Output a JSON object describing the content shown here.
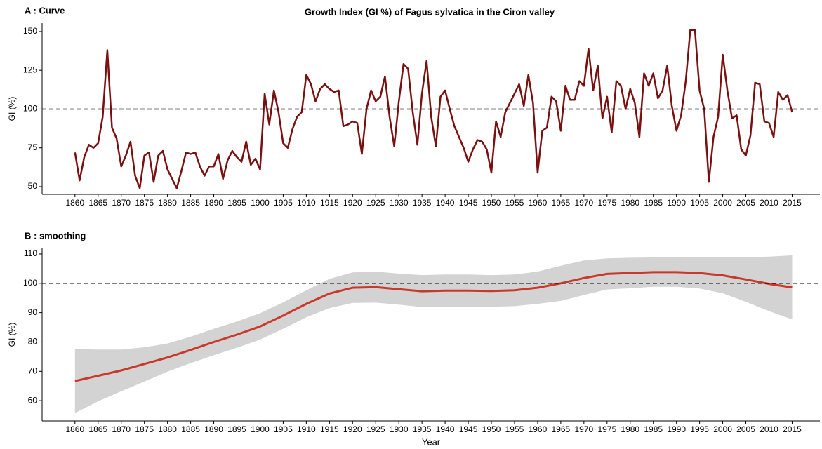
{
  "chart_data": [
    {
      "type": "line",
      "title": "Growth Index (GI %) of Fagus sylvatica in the Ciron valley",
      "panel_label": "A : Curve",
      "y_label": "GI (%)",
      "x": [
        1860,
        1861,
        1862,
        1863,
        1864,
        1865,
        1866,
        1867,
        1868,
        1869,
        1870,
        1871,
        1872,
        1873,
        1874,
        1875,
        1876,
        1877,
        1878,
        1879,
        1880,
        1881,
        1882,
        1883,
        1884,
        1885,
        1886,
        1887,
        1888,
        1889,
        1890,
        1891,
        1892,
        1893,
        1894,
        1895,
        1896,
        1897,
        1898,
        1899,
        1900,
        1901,
        1902,
        1903,
        1904,
        1905,
        1906,
        1907,
        1908,
        1909,
        1910,
        1911,
        1912,
        1913,
        1914,
        1915,
        1916,
        1917,
        1918,
        1919,
        1920,
        1921,
        1922,
        1923,
        1924,
        1925,
        1926,
        1927,
        1928,
        1929,
        1930,
        1931,
        1932,
        1933,
        1934,
        1935,
        1936,
        1937,
        1938,
        1939,
        1940,
        1941,
        1942,
        1943,
        1944,
        1945,
        1946,
        1947,
        1948,
        1949,
        1950,
        1951,
        1952,
        1953,
        1954,
        1955,
        1956,
        1957,
        1958,
        1959,
        1960,
        1961,
        1962,
        1963,
        1964,
        1965,
        1966,
        1967,
        1968,
        1969,
        1970,
        1971,
        1972,
        1973,
        1974,
        1975,
        1976,
        1977,
        1978,
        1979,
        1980,
        1981,
        1982,
        1983,
        1984,
        1985,
        1986,
        1987,
        1988,
        1989,
        1990,
        1991,
        1992,
        1993,
        1994,
        1995,
        1996,
        1997,
        1998,
        1999,
        2000,
        2001,
        2002,
        2003,
        2004,
        2005,
        2006,
        2007,
        2008,
        2009,
        2010,
        2011,
        2012,
        2013,
        2014,
        2015
      ],
      "values": [
        72,
        54,
        69,
        77,
        75,
        78,
        95,
        138,
        88,
        81,
        63,
        70,
        79,
        57,
        49,
        70,
        72,
        53,
        70,
        73,
        61,
        55,
        49,
        60,
        72,
        71,
        72,
        63,
        57,
        63,
        63,
        71,
        55,
        67,
        73,
        69,
        66,
        79,
        64,
        68,
        61,
        110,
        90,
        112,
        98,
        78,
        75,
        87,
        95,
        98,
        122,
        116,
        105,
        113,
        116,
        113,
        111,
        112,
        89,
        90,
        92,
        91,
        71,
        100,
        112,
        105,
        108,
        121,
        95,
        76,
        105,
        129,
        126,
        98,
        77,
        110,
        131,
        95,
        76,
        108,
        112,
        100,
        89,
        82,
        75,
        66,
        74,
        80,
        79,
        74,
        59,
        92,
        82,
        98,
        104,
        110,
        116,
        102,
        122,
        104,
        59,
        86,
        88,
        108,
        105,
        86,
        115,
        106,
        106,
        118,
        115,
        139,
        112,
        128,
        94,
        108,
        85,
        118,
        115,
        100,
        113,
        104,
        82,
        123,
        115,
        123,
        107,
        112,
        128,
        102,
        86,
        96,
        118,
        151,
        151,
        112,
        100,
        53,
        82,
        95,
        135,
        112,
        94,
        96,
        74,
        70,
        83,
        117,
        116,
        92,
        91,
        82,
        111,
        106,
        109,
        98
      ],
      "color": "#7a1010",
      "reference_line": 100,
      "xlim": [
        1852.9,
        2021
      ],
      "xticks": [
        1860,
        1865,
        1870,
        1875,
        1880,
        1885,
        1890,
        1895,
        1900,
        1905,
        1910,
        1915,
        1920,
        1925,
        1930,
        1935,
        1940,
        1945,
        1950,
        1955,
        1960,
        1965,
        1970,
        1975,
        1980,
        1985,
        1990,
        1995,
        2000,
        2005,
        2010,
        2015
      ],
      "ylim": [
        45,
        155.4
      ],
      "yticks": [
        50,
        75,
        100,
        125,
        150
      ]
    },
    {
      "type": "smooth",
      "panel_label": "B : smoothing",
      "y_label": "GI (%)",
      "x_label": "Year",
      "x": [
        1860,
        1865,
        1870,
        1875,
        1880,
        1885,
        1890,
        1895,
        1900,
        1905,
        1910,
        1915,
        1920,
        1925,
        1930,
        1935,
        1940,
        1945,
        1950,
        1955,
        1960,
        1965,
        1970,
        1975,
        1980,
        1985,
        1990,
        1995,
        2000,
        2005,
        2010,
        2015
      ],
      "values": [
        66.7,
        68.5,
        70.3,
        72.5,
        74.7,
        77.3,
        80,
        82.5,
        85.3,
        89,
        93,
        96.5,
        98.5,
        98.7,
        98,
        97.3,
        97.5,
        97.5,
        97.4,
        97.6,
        98.5,
        100,
        101.8,
        103.2,
        103.5,
        103.8,
        103.8,
        103.5,
        102.7,
        101.3,
        99.8,
        98.6
      ],
      "upper": [
        77.6,
        77.4,
        77.4,
        78.2,
        79.5,
        81.8,
        84.5,
        87,
        89.8,
        93.5,
        97.6,
        101.5,
        103.7,
        104,
        103.3,
        102.8,
        103,
        103,
        102.8,
        103,
        104,
        106,
        107.8,
        108.5,
        108.7,
        108.8,
        108.8,
        108.8,
        108.8,
        108.9,
        109.1,
        109.5
      ],
      "lower": [
        55.8,
        59.8,
        63.2,
        66.5,
        69.9,
        72.8,
        75.5,
        78,
        80.8,
        84.5,
        88.4,
        91.5,
        93.3,
        93.4,
        92.7,
        91.9,
        92,
        92,
        92,
        92.2,
        93,
        94,
        96,
        97.9,
        98.3,
        98.8,
        98.8,
        98.2,
        96.6,
        93.7,
        90.5,
        87.7
      ],
      "color": "#c8392b",
      "band_color": "#d3d3d3",
      "reference_line": 100,
      "xlim": [
        1852.9,
        2021
      ],
      "xticks": [
        1860,
        1865,
        1870,
        1875,
        1880,
        1885,
        1890,
        1895,
        1900,
        1905,
        1910,
        1915,
        1920,
        1925,
        1930,
        1935,
        1940,
        1945,
        1950,
        1955,
        1960,
        1965,
        1970,
        1975,
        1980,
        1985,
        1990,
        1995,
        2000,
        2005,
        2010,
        2015
      ],
      "ylim": [
        53.1,
        111.9
      ],
      "yticks": [
        60,
        70,
        80,
        90,
        100,
        110
      ]
    }
  ]
}
